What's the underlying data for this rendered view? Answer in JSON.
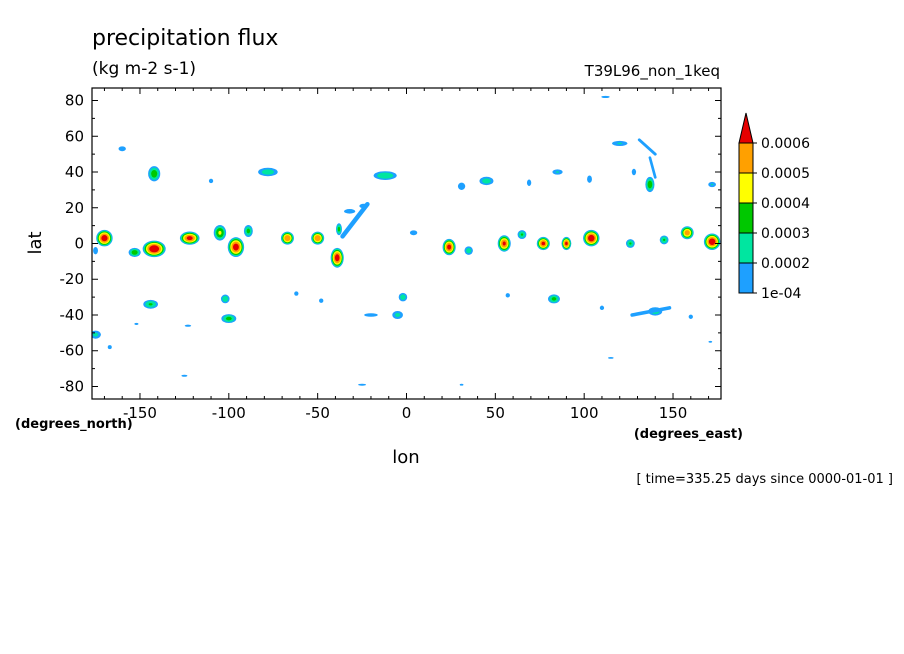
{
  "chart_data": {
    "type": "heatmap",
    "title": "precipitation flux",
    "units": "(kg m-2 s-1)",
    "dataset": "T39L96_non_1keq",
    "xlabel": "lon",
    "ylabel": "lat",
    "x_units": "(degrees_east)",
    "y_units": "(degrees_north)",
    "time_label": "[ time=335.25 days since 0000-01-01 ]",
    "xlim": [
      -177,
      177
    ],
    "ylim": [
      -87,
      87
    ],
    "x_ticks": [
      -150,
      -100,
      -50,
      0,
      50,
      100,
      150
    ],
    "y_ticks": [
      80,
      60,
      40,
      20,
      0,
      -20,
      -40,
      -60,
      -80
    ],
    "x_tick_labels": [
      "-150",
      "-100",
      "-50",
      "0",
      "50",
      "100",
      "150"
    ],
    "y_tick_labels": [
      "80",
      "60",
      "40",
      "20",
      "0",
      "-20",
      "-40",
      "-60",
      "-80"
    ],
    "levels": [
      0.0001,
      0.0002,
      0.0003,
      0.0004,
      0.0005,
      0.0006
    ],
    "colorbar_labels": [
      "0.0006",
      "0.0005",
      "0.0004",
      "0.0003",
      "0.0002",
      "1e-04"
    ],
    "colors": [
      "#1ea0ff",
      "#00e6a0",
      "#00c800",
      "#ffff00",
      "#ffa000",
      "#e60000"
    ],
    "blobs": [
      {
        "lon": -170,
        "lat": 3,
        "rx": 5,
        "ry": 5,
        "peak": 0.00065
      },
      {
        "lon": -153,
        "lat": -5,
        "rx": 4,
        "ry": 3,
        "peak": 0.00035
      },
      {
        "lon": -142,
        "lat": -3,
        "rx": 7,
        "ry": 5,
        "peak": 0.00068
      },
      {
        "lon": -122,
        "lat": 3,
        "rx": 6,
        "ry": 4,
        "peak": 0.00062
      },
      {
        "lon": -105,
        "lat": 6,
        "rx": 4,
        "ry": 5,
        "peak": 0.0004
      },
      {
        "lon": -96,
        "lat": -2,
        "rx": 5,
        "ry": 6,
        "peak": 0.00064
      },
      {
        "lon": -89,
        "lat": 7,
        "rx": 3,
        "ry": 4,
        "peak": 0.00032
      },
      {
        "lon": -67,
        "lat": 3,
        "rx": 4,
        "ry": 4,
        "peak": 0.00058
      },
      {
        "lon": -50,
        "lat": 3,
        "rx": 4,
        "ry": 4,
        "peak": 0.00058
      },
      {
        "lon": -39,
        "lat": -8,
        "rx": 4,
        "ry": 6,
        "peak": 0.00064
      },
      {
        "lon": -38,
        "lat": 8,
        "rx": 2,
        "ry": 4,
        "peak": 0.00032
      },
      {
        "lon": 24,
        "lat": -2,
        "rx": 4,
        "ry": 5,
        "peak": 0.00062
      },
      {
        "lon": 35,
        "lat": -4,
        "rx": 3,
        "ry": 3,
        "peak": 0.00025
      },
      {
        "lon": 55,
        "lat": 0,
        "rx": 4,
        "ry": 5,
        "peak": 0.0006
      },
      {
        "lon": 65,
        "lat": 5,
        "rx": 3,
        "ry": 3,
        "peak": 0.0003
      },
      {
        "lon": 77,
        "lat": 0,
        "rx": 4,
        "ry": 4,
        "peak": 0.00061
      },
      {
        "lon": 90,
        "lat": 0,
        "rx": 3,
        "ry": 4,
        "peak": 0.00061
      },
      {
        "lon": 104,
        "lat": 3,
        "rx": 5,
        "ry": 5,
        "peak": 0.00066
      },
      {
        "lon": 126,
        "lat": 0,
        "rx": 3,
        "ry": 3,
        "peak": 0.0003
      },
      {
        "lon": 145,
        "lat": 2,
        "rx": 3,
        "ry": 3,
        "peak": 0.0003
      },
      {
        "lon": 158,
        "lat": 6,
        "rx": 4,
        "ry": 4,
        "peak": 0.00055
      },
      {
        "lon": 172,
        "lat": 1,
        "rx": 5,
        "ry": 5,
        "peak": 0.00066
      },
      {
        "lon": -175,
        "lat": -4,
        "rx": 2,
        "ry": 3,
        "peak": 0.00018
      },
      {
        "lon": -160,
        "lat": 53,
        "rx": 3,
        "ry": 2,
        "peak": 0.00018
      },
      {
        "lon": -142,
        "lat": 39,
        "rx": 4,
        "ry": 5,
        "peak": 0.00035
      },
      {
        "lon": -110,
        "lat": 35,
        "rx": 2,
        "ry": 2,
        "peak": 0.00015
      },
      {
        "lon": -78,
        "lat": 40,
        "rx": 7,
        "ry": 3,
        "peak": 0.00025
      },
      {
        "lon": -12,
        "lat": 38,
        "rx": 8,
        "ry": 3,
        "peak": 0.00028
      },
      {
        "lon": -32,
        "lat": 18,
        "rx": 5,
        "ry": 2,
        "peak": 0.00016
      },
      {
        "lon": -24,
        "lat": 21,
        "rx": 4,
        "ry": 2,
        "peak": 0.00016
      },
      {
        "lon": 4,
        "lat": 6,
        "rx": 3,
        "ry": 2,
        "peak": 0.00018
      },
      {
        "lon": 31,
        "lat": 32,
        "rx": 3,
        "ry": 3,
        "peak": 0.00018
      },
      {
        "lon": 45,
        "lat": 35,
        "rx": 5,
        "ry": 3,
        "peak": 0.00025
      },
      {
        "lon": 69,
        "lat": 34,
        "rx": 2,
        "ry": 3,
        "peak": 0.00015
      },
      {
        "lon": 85,
        "lat": 40,
        "rx": 4,
        "ry": 2,
        "peak": 0.0002
      },
      {
        "lon": 103,
        "lat": 36,
        "rx": 2,
        "ry": 3,
        "peak": 0.00018
      },
      {
        "lon": 120,
        "lat": 56,
        "rx": 6,
        "ry": 2,
        "peak": 0.0002
      },
      {
        "lon": 137,
        "lat": 33,
        "rx": 3,
        "ry": 5,
        "peak": 0.00035
      },
      {
        "lon": 128,
        "lat": 40,
        "rx": 2,
        "ry": 3,
        "peak": 0.00015
      },
      {
        "lon": 172,
        "lat": 33,
        "rx": 3,
        "ry": 2,
        "peak": 0.0002
      },
      {
        "lon": 112,
        "lat": 82,
        "rx": 4,
        "ry": 1,
        "peak": 0.00015
      },
      {
        "lon": -144,
        "lat": -34,
        "rx": 5,
        "ry": 3,
        "peak": 0.0003
      },
      {
        "lon": -123,
        "lat": -46,
        "rx": 3,
        "ry": 1,
        "peak": 0.00015
      },
      {
        "lon": -102,
        "lat": -31,
        "rx": 3,
        "ry": 3,
        "peak": 0.00028
      },
      {
        "lon": -100,
        "lat": -42,
        "rx": 5,
        "ry": 3,
        "peak": 0.00032
      },
      {
        "lon": -62,
        "lat": -28,
        "rx": 2,
        "ry": 2,
        "peak": 0.00015
      },
      {
        "lon": -48,
        "lat": -32,
        "rx": 2,
        "ry": 2,
        "peak": 0.00015
      },
      {
        "lon": -2,
        "lat": -30,
        "rx": 3,
        "ry": 3,
        "peak": 0.00026
      },
      {
        "lon": -5,
        "lat": -40,
        "rx": 4,
        "ry": 3,
        "peak": 0.00022
      },
      {
        "lon": -20,
        "lat": -40,
        "rx": 6,
        "ry": 1.5,
        "peak": 0.00016
      },
      {
        "lon": 57,
        "lat": -29,
        "rx": 2,
        "ry": 2,
        "peak": 0.00015
      },
      {
        "lon": 83,
        "lat": -31,
        "rx": 4,
        "ry": 3,
        "peak": 0.00032
      },
      {
        "lon": 110,
        "lat": -36,
        "rx": 2,
        "ry": 2,
        "peak": 0.00015
      },
      {
        "lon": 140,
        "lat": -38,
        "rx": 5,
        "ry": 3,
        "peak": 0.00025
      },
      {
        "lon": 160,
        "lat": -41,
        "rx": 2,
        "ry": 2,
        "peak": 0.00015
      },
      {
        "lon": -175,
        "lat": -51,
        "rx": 4,
        "ry": 3,
        "peak": 0.00022
      },
      {
        "lon": -167,
        "lat": -58,
        "rx": 2,
        "ry": 2,
        "peak": 0.00014
      },
      {
        "lon": -152,
        "lat": -45,
        "rx": 2,
        "ry": 1,
        "peak": 0.00014
      },
      {
        "lon": -125,
        "lat": -74,
        "rx": 3,
        "ry": 1,
        "peak": 0.00014
      },
      {
        "lon": -25,
        "lat": -79,
        "rx": 4,
        "ry": 1,
        "peak": 0.00014
      },
      {
        "lon": 31,
        "lat": -79,
        "rx": 2,
        "ry": 1,
        "peak": 0.00013
      },
      {
        "lon": 115,
        "lat": -64,
        "rx": 3,
        "ry": 1,
        "peak": 0.00013
      },
      {
        "lon": 171,
        "lat": -55,
        "rx": 2,
        "ry": 1,
        "peak": 0.00013
      }
    ],
    "streaks": [
      {
        "from": [
          -22,
          22
        ],
        "to": [
          -36,
          4
        ],
        "width": 2.5,
        "peak": 0.0002
      },
      {
        "from": [
          148,
          -36
        ],
        "to": [
          127,
          -40
        ],
        "width": 2,
        "peak": 0.00018
      },
      {
        "from": [
          131,
          58
        ],
        "to": [
          140,
          50
        ],
        "width": 1.6,
        "peak": 0.00015
      },
      {
        "from": [
          140,
          37
        ],
        "to": [
          137,
          48
        ],
        "width": 1.5,
        "peak": 0.00016
      }
    ]
  }
}
